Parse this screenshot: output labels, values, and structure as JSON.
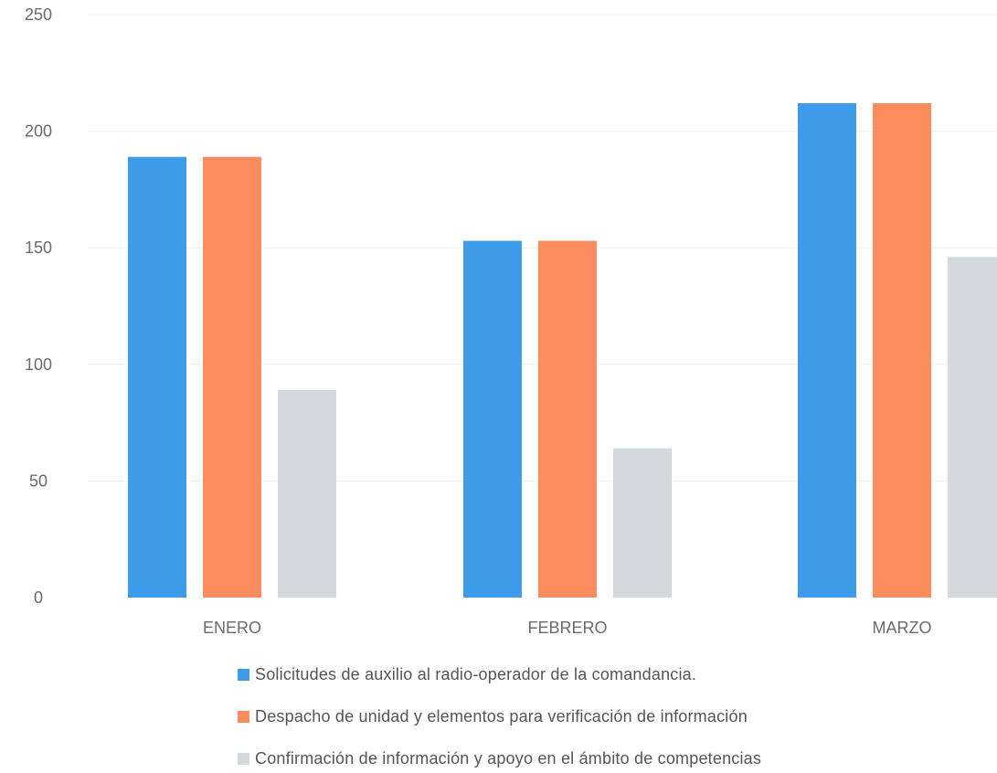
{
  "chart_data": {
    "type": "bar",
    "categories": [
      "ENERO",
      "FEBRERO",
      "MARZO"
    ],
    "series": [
      {
        "name": "Solicitudes de auxilio al radio-operador de la comandancia.",
        "values": [
          189,
          153,
          212
        ],
        "color": "#3D9BE9"
      },
      {
        "name": "Despacho de unidad y elementos para verificación de información",
        "values": [
          189,
          153,
          212
        ],
        "color": "#FA8C5E"
      },
      {
        "name": "Confirmación de información y apoyo en el ámbito de competencias",
        "values": [
          89,
          64,
          146
        ],
        "color": "#D4D9DE"
      }
    ],
    "yticks": [
      "0",
      "50",
      "100",
      "150",
      "200",
      "250"
    ],
    "ylim": [
      0,
      250
    ],
    "grid": true,
    "legend_position": "bottom",
    "title": "",
    "xlabel": "",
    "ylabel": ""
  }
}
